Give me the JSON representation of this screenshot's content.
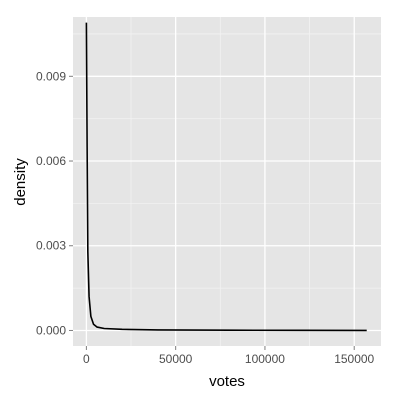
{
  "chart_data": {
    "type": "line",
    "xlabel": "votes",
    "ylabel": "density",
    "xlim": [
      -7500,
      165000
    ],
    "ylim": [
      -0.00055,
      0.0111
    ],
    "x_ticks": [
      0,
      50000,
      100000,
      150000
    ],
    "x_tick_labels": [
      "0",
      "50000",
      "100000",
      "150000"
    ],
    "x_minor_ticks": [
      25000,
      75000,
      125000
    ],
    "y_ticks": [
      0.0,
      0.003,
      0.006,
      0.009
    ],
    "y_tick_labels": [
      "0.000",
      "0.003",
      "0.006",
      "0.009"
    ],
    "y_minor_ticks": [
      0.0015,
      0.0045,
      0.0075,
      0.0105
    ],
    "grid": true,
    "legend": "none",
    "series": [
      {
        "x": [
          0,
          400,
          800,
          1500,
          2500,
          4000,
          6000,
          10000,
          20000,
          40000,
          80000,
          120000,
          157000
        ],
        "y": [
          0.0109,
          0.0065,
          0.0028,
          0.0012,
          0.0005,
          0.00022,
          0.00012,
          7e-05,
          4e-05,
          2e-05,
          1e-05,
          5e-06,
          0.0
        ]
      }
    ],
    "colors": {
      "panel_background": "#e5e5e5",
      "grid_major": "#ffffff",
      "grid_minor": "#f2f2f2",
      "line": "#000000"
    }
  }
}
